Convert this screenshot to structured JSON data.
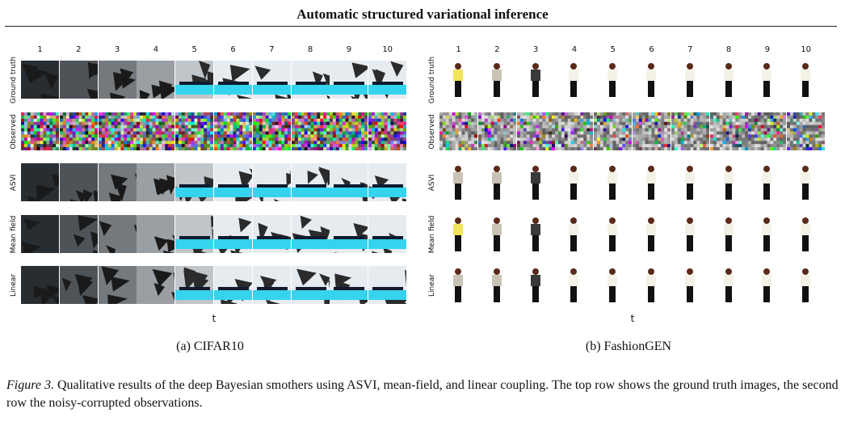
{
  "header": {
    "title": "Automatic structured variational inference"
  },
  "panels": [
    {
      "id": "a",
      "subcaption": "(a) CIFAR10",
      "columns": [
        "1",
        "2",
        "3",
        "4",
        "5",
        "6",
        "7",
        "8",
        "9",
        "10"
      ],
      "rows": [
        "Ground truth",
        "Observed",
        "ASVI",
        "Mean field",
        "Linear"
      ],
      "axis_label": "t"
    },
    {
      "id": "b",
      "subcaption": "(b) FashionGEN",
      "columns": [
        "1",
        "2",
        "3",
        "4",
        "5",
        "6",
        "7",
        "8",
        "9",
        "10"
      ],
      "rows": [
        "Ground truth",
        "Observed",
        "ASVI",
        "Mean field",
        "Linear"
      ],
      "axis_label": "t"
    }
  ],
  "caption": {
    "figure_label": "Figure 3.",
    "text": " Qualitative results of the deep Bayesian smothers using ASVI, mean-field, and linear coupling. The top row shows the ground truth images, the second row the noisy-corrupted observations."
  }
}
